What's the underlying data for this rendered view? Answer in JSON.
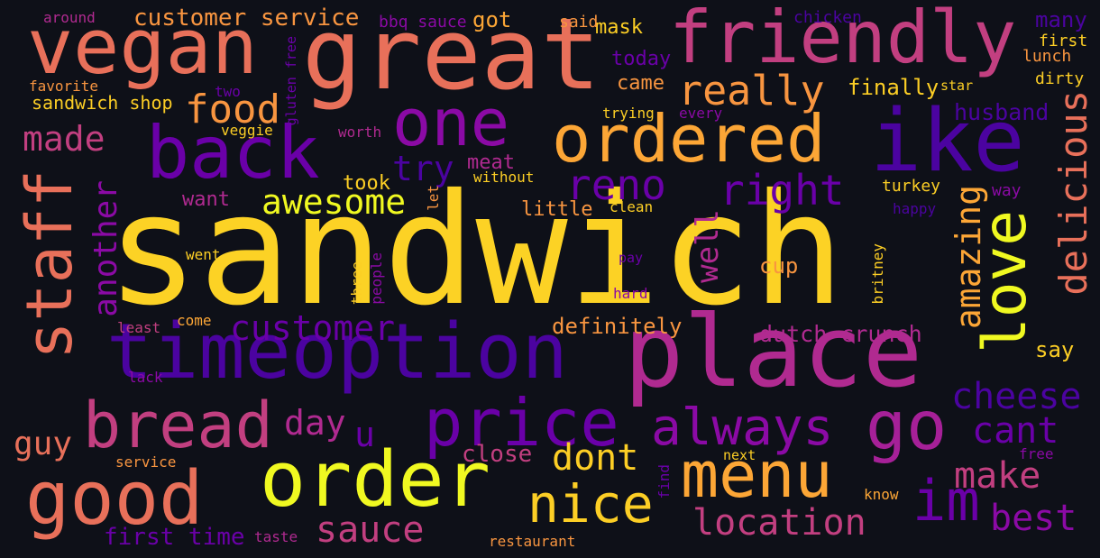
{
  "background": "#0e1018",
  "colormap": "plasma",
  "words": [
    {
      "text": "sandwich",
      "color": "#fcd225"
    },
    {
      "text": "great",
      "color": "#e8705a"
    },
    {
      "text": "place",
      "color": "#b02a90"
    },
    {
      "text": "vegan",
      "color": "#e8705a"
    },
    {
      "text": "friendly",
      "color": "#c23f80"
    },
    {
      "text": "timeoption",
      "color": "#4b03a0"
    },
    {
      "text": "order",
      "color": "#f0f921"
    },
    {
      "text": "ike",
      "color": "#4b03a0"
    },
    {
      "text": "back",
      "color": "#6a00a8"
    },
    {
      "text": "one",
      "color": "#8b0aa5"
    },
    {
      "text": "good",
      "color": "#e8705a"
    },
    {
      "text": "ordered",
      "color": "#fca636"
    },
    {
      "text": "staff",
      "color": "#e8705a"
    },
    {
      "text": "go",
      "color": "#a62098"
    },
    {
      "text": "price",
      "color": "#6a00a8"
    },
    {
      "text": "menu",
      "color": "#fca636"
    },
    {
      "text": "bread",
      "color": "#c23f80"
    },
    {
      "text": "love",
      "color": "#f0f921"
    },
    {
      "text": "nice",
      "color": "#fcce25"
    },
    {
      "text": "im",
      "color": "#6a00a8"
    },
    {
      "text": "always",
      "color": "#8b0aa5"
    },
    {
      "text": "delicious",
      "color": "#e8705a"
    },
    {
      "text": "really",
      "color": "#f89540"
    },
    {
      "text": "reno",
      "color": "#6a00a8"
    },
    {
      "text": "right",
      "color": "#6a00a8"
    },
    {
      "text": "food",
      "color": "#f89540"
    },
    {
      "text": "awesome",
      "color": "#f0f921"
    },
    {
      "text": "location",
      "color": "#c23f80"
    },
    {
      "text": "customer",
      "color": "#6a00a8"
    },
    {
      "text": "sauce",
      "color": "#c23f80"
    },
    {
      "text": "cheese",
      "color": "#4b03a0"
    },
    {
      "text": "cant",
      "color": "#6a00a8"
    },
    {
      "text": "make",
      "color": "#c23f80"
    },
    {
      "text": "best",
      "color": "#8b0aa5"
    },
    {
      "text": "amazing",
      "color": "#fca636"
    },
    {
      "text": "another",
      "color": "#8b0aa5"
    },
    {
      "text": "made",
      "color": "#c23f80"
    },
    {
      "text": "dont",
      "color": "#fcce25"
    },
    {
      "text": "try",
      "color": "#4b03a0"
    },
    {
      "text": "day",
      "color": "#b02a90"
    },
    {
      "text": "u",
      "color": "#6a00a8"
    },
    {
      "text": "guy",
      "color": "#e8705a"
    },
    {
      "text": "well",
      "color": "#b02a90"
    },
    {
      "text": "customer service",
      "color": "#f89540"
    },
    {
      "text": "husband",
      "color": "#4b03a0"
    },
    {
      "text": "finally",
      "color": "#fcce25"
    },
    {
      "text": "dutch crunch",
      "color": "#b02a90"
    },
    {
      "text": "first time",
      "color": "#6a00a8"
    },
    {
      "text": "definitely",
      "color": "#f89540"
    },
    {
      "text": "close",
      "color": "#c23f80"
    },
    {
      "text": "cup",
      "color": "#f89540"
    },
    {
      "text": "say",
      "color": "#fcce25"
    },
    {
      "text": "many",
      "color": "#4b03a0"
    },
    {
      "text": "today",
      "color": "#6a00a8"
    },
    {
      "text": "came",
      "color": "#f89540"
    },
    {
      "text": "got",
      "color": "#fca636"
    },
    {
      "text": "mask",
      "color": "#fcce25"
    },
    {
      "text": "took",
      "color": "#fcce25"
    },
    {
      "text": "want",
      "color": "#b02a90"
    },
    {
      "text": "little",
      "color": "#f89540"
    },
    {
      "text": "meat",
      "color": "#b02a90"
    },
    {
      "text": "sandwich shop",
      "color": "#fcce25"
    },
    {
      "text": "turkey",
      "color": "#fcce25"
    },
    {
      "text": "way",
      "color": "#8b0aa5"
    },
    {
      "text": "dirty",
      "color": "#fcce25"
    },
    {
      "text": "first",
      "color": "#fcce25"
    },
    {
      "text": "lunch",
      "color": "#f89540"
    },
    {
      "text": "star",
      "color": "#fcce25"
    },
    {
      "text": "chicken",
      "color": "#4b03a0"
    },
    {
      "text": "bbq sauce",
      "color": "#8b0aa5"
    },
    {
      "text": "said",
      "color": "#f89540"
    },
    {
      "text": "around",
      "color": "#b02a90"
    },
    {
      "text": "favorite",
      "color": "#f89540"
    },
    {
      "text": "two",
      "color": "#6a00a8"
    },
    {
      "text": "veggie",
      "color": "#fcce25"
    },
    {
      "text": "gluten free",
      "color": "#6a00a8"
    },
    {
      "text": "worth",
      "color": "#b02a90"
    },
    {
      "text": "trying",
      "color": "#fcce25"
    },
    {
      "text": "every",
      "color": "#8b0aa5"
    },
    {
      "text": "without",
      "color": "#fcce25"
    },
    {
      "text": "let",
      "color": "#f89540"
    },
    {
      "text": "clean",
      "color": "#fcce25"
    },
    {
      "text": "happy",
      "color": "#4b03a0"
    },
    {
      "text": "went",
      "color": "#fcce25"
    },
    {
      "text": "three",
      "color": "#fcce25"
    },
    {
      "text": "people",
      "color": "#8b0aa5"
    },
    {
      "text": "pay",
      "color": "#6a00a8"
    },
    {
      "text": "hard",
      "color": "#8b0aa5"
    },
    {
      "text": "britney",
      "color": "#fcce25"
    },
    {
      "text": "least",
      "color": "#c23f80"
    },
    {
      "text": "come",
      "color": "#fca636"
    },
    {
      "text": "lack",
      "color": "#8b0aa5"
    },
    {
      "text": "service",
      "color": "#f89540"
    },
    {
      "text": "next",
      "color": "#fcce25"
    },
    {
      "text": "free",
      "color": "#8b0aa5"
    },
    {
      "text": "find",
      "color": "#6a00a8"
    },
    {
      "text": "know",
      "color": "#fca636"
    },
    {
      "text": "taste",
      "color": "#b02a90"
    },
    {
      "text": "restaurant",
      "color": "#f89540"
    }
  ]
}
